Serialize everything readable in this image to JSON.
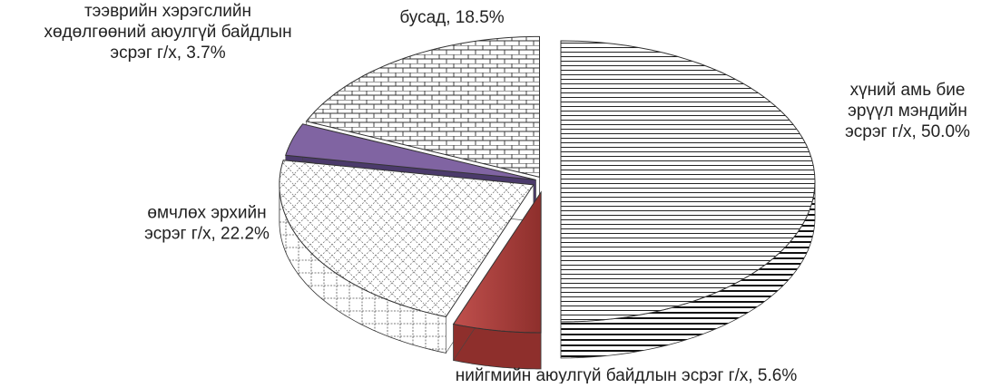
{
  "chart_data": {
    "type": "pie",
    "title": "",
    "style": "3d-exploded",
    "slices": [
      {
        "label": "хүний амь бие эрүүл мэндийн эсрэг г/х",
        "value": 50.0,
        "display": "хүний амь бие\nэрүүл мэндийн\nэсрэг г/х, 50.0%",
        "pattern": "hlines",
        "color": "#ffffff",
        "side_color": "#ffffff"
      },
      {
        "label": "нийгмийн аюулгүй байдлын эсрэг г/х",
        "value": 5.6,
        "display": "нийгмийн аюулгүй байдлын эсрэг г/х, 5.6%",
        "pattern": "solid",
        "color": "#c0504d",
        "side_color": "#8e2f2c"
      },
      {
        "label": "өмчлөх эрхийн эсрэг г/х",
        "value": 22.2,
        "display": "өмчлөх эрхийн\nэсрэг г/х, 22.2%",
        "pattern": "lattice",
        "color": "#ffffff",
        "side_color": "#ffffff"
      },
      {
        "label": "тээврийн хэрэгслийн хөдөлгөөний аюулгүй байдлын эсрэг г/х",
        "value": 3.7,
        "display": "тээврийн хэрэгслийн\nхөдөлгөөний аюулгүй байдлын\nэсрэг г/х, 3.7%",
        "pattern": "solid",
        "color": "#8064a2",
        "side_color": "#4b3a6b"
      },
      {
        "label": "бусад",
        "value": 18.5,
        "display": "бусад, 18.5%",
        "pattern": "bricks",
        "color": "#ffffff",
        "side_color": "#ffffff"
      }
    ]
  }
}
